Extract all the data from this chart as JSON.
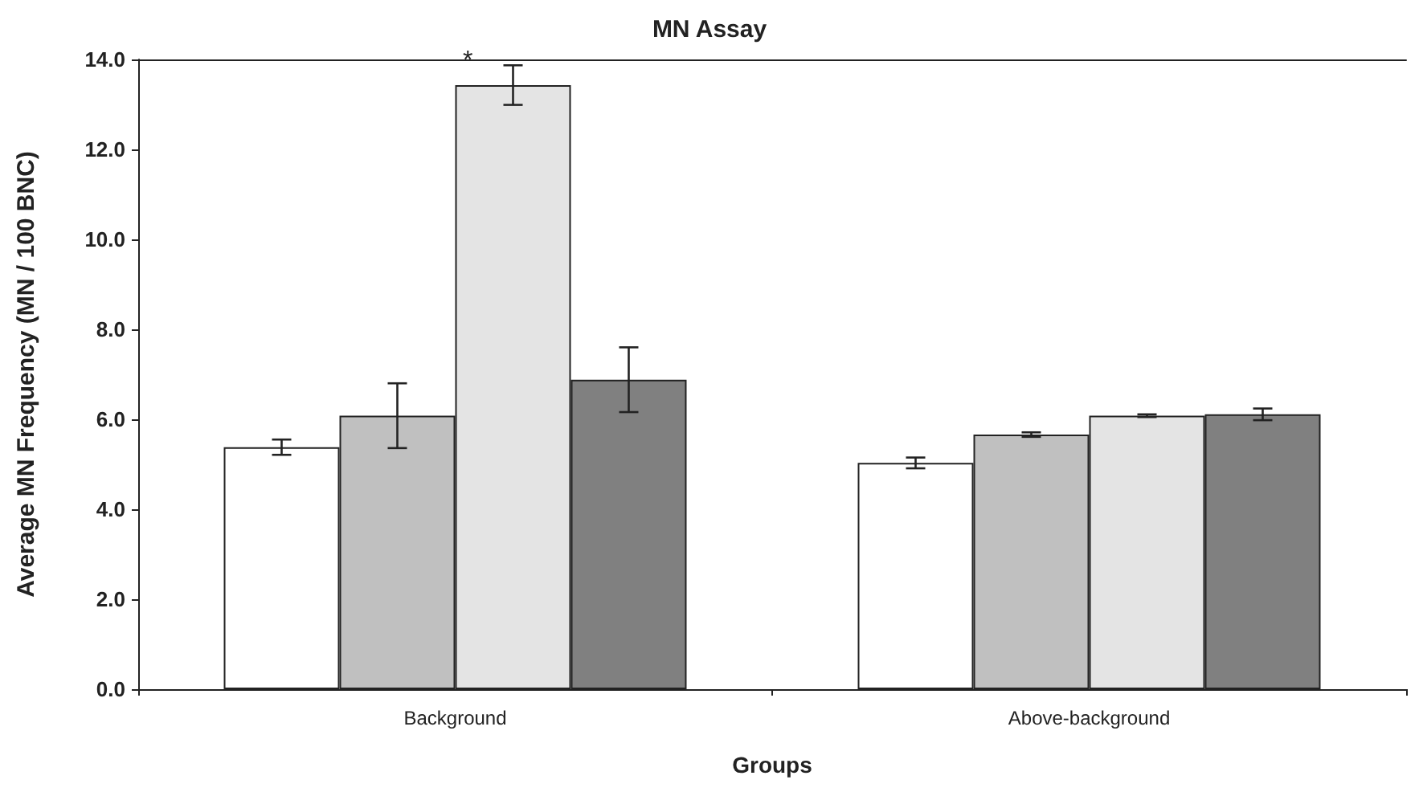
{
  "chart_data": {
    "type": "bar",
    "title": "MN Assay",
    "xlabel": "Groups",
    "ylabel": "Average MN Frequency (MN / 100 BNC)",
    "categories": [
      "Background",
      "Above-background"
    ],
    "series": [
      {
        "color": "#ffffff",
        "values": [
          5.38,
          5.03
        ],
        "errors": [
          0.17,
          0.12
        ]
      },
      {
        "color": "#c0c0c0",
        "values": [
          6.08,
          5.66
        ],
        "errors": [
          0.72,
          0.05
        ]
      },
      {
        "color": "#e4e4e4",
        "values": [
          13.43,
          6.08
        ],
        "errors": [
          0.44,
          0.03
        ]
      },
      {
        "color": "#808080",
        "values": [
          6.88,
          6.11
        ],
        "errors": [
          0.72,
          0.13
        ]
      }
    ],
    "ylim": [
      0,
      14
    ],
    "yticks": [
      {
        "value": 0,
        "label": "0.0"
      },
      {
        "value": 2,
        "label": "2.0"
      },
      {
        "value": 4,
        "label": "4.0"
      },
      {
        "value": 6,
        "label": "6.0"
      },
      {
        "value": 8,
        "label": "8.0"
      },
      {
        "value": 10,
        "label": "10.0"
      },
      {
        "value": 12,
        "label": "12.0"
      },
      {
        "value": 14,
        "label": "14.0"
      }
    ],
    "grid": false,
    "annotations": [
      "*"
    ]
  }
}
